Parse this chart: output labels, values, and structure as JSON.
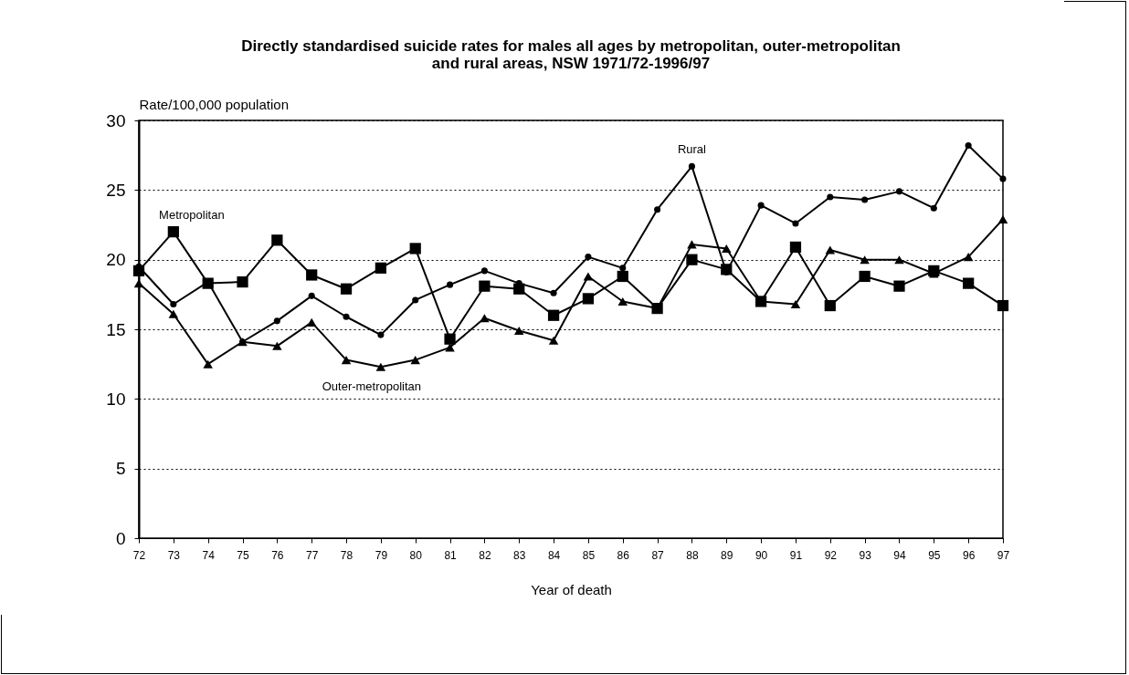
{
  "chart_data": {
    "type": "line",
    "title": [
      "Directly standardised suicide rates for males all ages by metropolitan, outer-metropolitan",
      "and rural areas, NSW 1971/72-1996/97"
    ],
    "xlabel": "Year of death",
    "ylabel": "Rate/100,000 population",
    "categories": [
      "72",
      "73",
      "74",
      "75",
      "76",
      "77",
      "78",
      "79",
      "80",
      "81",
      "82",
      "83",
      "84",
      "85",
      "86",
      "87",
      "88",
      "89",
      "90",
      "91",
      "92",
      "93",
      "94",
      "95",
      "96",
      "97"
    ],
    "series": [
      {
        "name": "Metropolitan",
        "color": "#000000",
        "marker": "square",
        "values": [
          19.2,
          22.0,
          18.3,
          18.4,
          21.4,
          18.9,
          17.9,
          19.4,
          20.8,
          14.3,
          18.1,
          17.9,
          16.0,
          17.2,
          18.8,
          16.5,
          20.0,
          19.3,
          17.0,
          20.9,
          16.7,
          18.8,
          18.1,
          19.2,
          18.3,
          16.7
        ]
      },
      {
        "name": "Rural",
        "color": "#000000",
        "marker": "circle",
        "values": [
          19.5,
          16.8,
          18.4,
          14.1,
          15.6,
          17.4,
          15.9,
          14.6,
          17.1,
          18.2,
          19.2,
          18.3,
          17.6,
          20.2,
          19.4,
          23.6,
          26.7,
          19.1,
          23.9,
          22.6,
          24.5,
          24.3,
          24.9,
          23.7,
          28.2,
          25.8
        ]
      },
      {
        "name": "Outer-metropolitan",
        "color": "#000000",
        "marker": "triangle",
        "values": [
          18.3,
          16.1,
          12.5,
          14.1,
          13.8,
          15.5,
          12.8,
          12.3,
          12.8,
          13.7,
          15.8,
          14.9,
          14.2,
          18.8,
          17.0,
          16.5,
          21.1,
          20.8,
          17.0,
          16.8,
          20.7,
          20.0,
          20.0,
          19.0,
          20.2,
          22.9
        ]
      }
    ],
    "ylim": [
      0,
      30
    ],
    "yticks": [
      0,
      5,
      10,
      15,
      20,
      25,
      30
    ],
    "grid": "y",
    "line_style": "solid"
  }
}
